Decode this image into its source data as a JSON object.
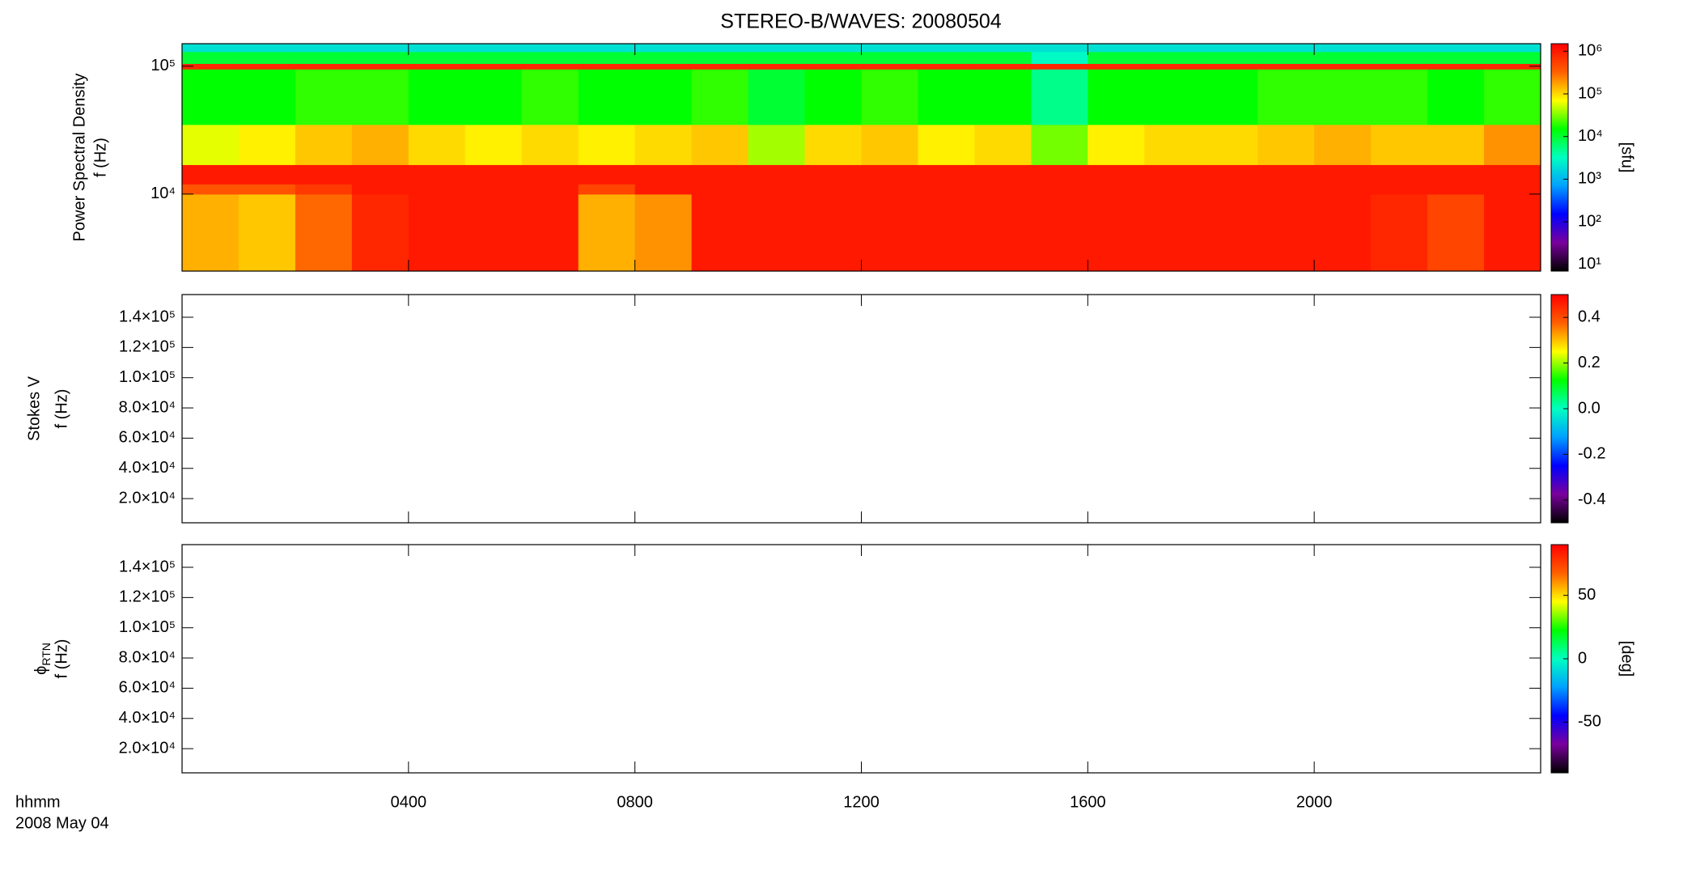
{
  "chart_data": [
    {
      "type": "heatmap",
      "title": "STEREO-B/WAVES: 20080504",
      "ylabel": [
        "Power Spectral Density",
        "f (Hz)"
      ],
      "ylog": true,
      "ylim": [
        2500,
        150000
      ],
      "yticks": [
        {
          "value": 10000,
          "label": "10⁴"
        },
        {
          "value": 100000,
          "label": "10⁵"
        }
      ],
      "x_edges": [
        0,
        1,
        2,
        3,
        4,
        5,
        6,
        7,
        8,
        9,
        10,
        11,
        12,
        13,
        14,
        15,
        16,
        17,
        18,
        19,
        20,
        21,
        22,
        23,
        24
      ],
      "y_edges": [
        2500,
        10000,
        12000,
        17000,
        35000,
        95000,
        105000,
        130000,
        150000
      ],
      "z": [
        [
          150000,
          120000,
          300000,
          800000,
          1000000,
          1000000,
          1000000,
          150000,
          200000,
          1000000,
          1000000,
          1000000,
          1000000,
          1000000,
          1000000,
          1000000,
          1000000,
          1000000,
          1000000,
          1000000,
          1000000,
          800000,
          500000,
          1000000
        ],
        [
          400000,
          400000,
          600000,
          1000000,
          1000000,
          1000000,
          1000000,
          500000,
          1000000,
          1000000,
          1000000,
          1000000,
          1000000,
          1000000,
          1000000,
          1000000,
          1000000,
          1000000,
          1000000,
          1000000,
          1000000,
          1000000,
          1000000,
          1000000
        ],
        [
          1000000,
          1000000,
          1000000,
          1000000,
          1000000,
          1000000,
          1000000,
          1000000,
          1000000,
          1000000,
          1000000,
          1000000,
          1000000,
          1000000,
          1000000,
          1000000,
          1000000,
          1000000,
          1000000,
          1000000,
          1000000,
          1000000,
          1000000,
          1000000
        ],
        [
          60000,
          80000,
          120000,
          150000,
          100000,
          80000,
          100000,
          80000,
          100000,
          120000,
          40000,
          100000,
          120000,
          80000,
          100000,
          30000,
          80000,
          100000,
          100000,
          120000,
          150000,
          120000,
          120000,
          200000
        ],
        [
          15000,
          15000,
          20000,
          20000,
          15000,
          15000,
          20000,
          15000,
          15000,
          20000,
          10000,
          15000,
          20000,
          15000,
          15000,
          5000,
          15000,
          15000,
          15000,
          20000,
          20000,
          20000,
          15000,
          20000
        ],
        [
          800000,
          800000,
          800000,
          800000,
          800000,
          800000,
          800000,
          800000,
          800000,
          800000,
          800000,
          800000,
          800000,
          800000,
          800000,
          800000,
          800000,
          800000,
          800000,
          800000,
          800000,
          800000,
          800000,
          800000
        ],
        [
          10000,
          10000,
          10000,
          10000,
          10000,
          10000,
          10000,
          10000,
          10000,
          10000,
          10000,
          10000,
          10000,
          10000,
          10000,
          3000,
          10000,
          10000,
          10000,
          10000,
          10000,
          10000,
          10000,
          10000
        ],
        [
          2000,
          2000,
          2000,
          2000,
          2000,
          2000,
          2000,
          2000,
          2000,
          2000,
          2000,
          2000,
          2000,
          2000,
          2000,
          2000,
          2000,
          2000,
          2000,
          2000,
          2000,
          2000,
          2000,
          2000
        ]
      ],
      "colormap": [
        "#000000",
        "#7a009c",
        "#0000ff",
        "#00a0ff",
        "#00ffc0",
        "#00ff00",
        "#ffff00",
        "#ff6000",
        "#ff0000"
      ],
      "clog": true,
      "clim": [
        7,
        1500000
      ],
      "cticks": [
        {
          "value": 10,
          "label": "10¹"
        },
        {
          "value": 100,
          "label": "10²"
        },
        {
          "value": 1000,
          "label": "10³"
        },
        {
          "value": 10000,
          "label": "10⁴"
        },
        {
          "value": 100000,
          "label": "10⁵"
        },
        {
          "value": 1000000,
          "label": "10⁶"
        }
      ],
      "clabel": "[sfu]"
    },
    {
      "type": "heatmap",
      "ylabel": [
        "Stokes V",
        "f (Hz)"
      ],
      "ylog": false,
      "ylim": [
        4000,
        155000
      ],
      "yticks": [
        {
          "value": 20000,
          "label": "2.0×10⁴"
        },
        {
          "value": 40000,
          "label": "4.0×10⁴"
        },
        {
          "value": 60000,
          "label": "6.0×10⁴"
        },
        {
          "value": 80000,
          "label": "8.0×10⁴"
        },
        {
          "value": 100000,
          "label": "1.0×10⁵"
        },
        {
          "value": 120000,
          "label": "1.2×10⁵"
        },
        {
          "value": 140000,
          "label": "1.4×10⁵"
        }
      ],
      "colormap": [
        "#000000",
        "#7a009c",
        "#0000ff",
        "#00a0ff",
        "#00ffc0",
        "#00ff00",
        "#ffff00",
        "#ff6000",
        "#ff0000"
      ],
      "clog": false,
      "clim": [
        -0.5,
        0.5
      ],
      "cticks": [
        -0.4,
        -0.2,
        {
          "value": 0,
          "label": "0.0"
        },
        0.2,
        0.4
      ]
    },
    {
      "type": "heatmap",
      "ylabel_symbol": "ϕ",
      "ylabel_subscript": "RTN",
      "ylabel": [
        "f (Hz)"
      ],
      "ylog": false,
      "ylim": [
        4000,
        155000
      ],
      "yticks": [
        {
          "value": 20000,
          "label": "2.0×10⁴"
        },
        {
          "value": 40000,
          "label": "4.0×10⁴"
        },
        {
          "value": 60000,
          "label": "6.0×10⁴"
        },
        {
          "value": 80000,
          "label": "8.0×10⁴"
        },
        {
          "value": 100000,
          "label": "1.0×10⁵"
        },
        {
          "value": 120000,
          "label": "1.2×10⁵"
        },
        {
          "value": 140000,
          "label": "1.4×10⁵"
        }
      ],
      "colormap": [
        "#000000",
        "#7a009c",
        "#0000ff",
        "#00a0ff",
        "#00ffc0",
        "#00ff00",
        "#ffff00",
        "#ff6000",
        "#ff0000"
      ],
      "clog": false,
      "clim": [
        -90,
        90
      ],
      "cticks": [
        -50,
        0,
        50
      ],
      "clabel": "[deg]",
      "xlim": [
        0,
        24
      ],
      "xticks": [
        {
          "value": 4,
          "label": "0400"
        },
        {
          "value": 8,
          "label": "0800"
        },
        {
          "value": 12,
          "label": "1200"
        },
        {
          "value": 16,
          "label": "1600"
        },
        {
          "value": 20,
          "label": "2000"
        }
      ],
      "xlabel": "hhmm",
      "date": "2008 May 04"
    }
  ]
}
